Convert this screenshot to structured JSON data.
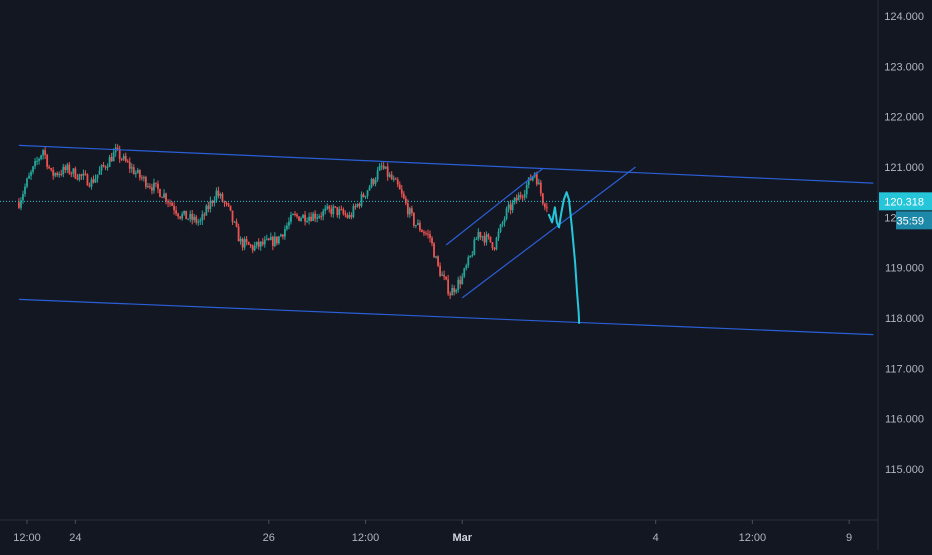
{
  "chart_data": {
    "type": "candlestick",
    "price_axis": {
      "ylim": [
        114.1,
        124.35
      ],
      "ticks": [
        115,
        116,
        117,
        118,
        119,
        120,
        121,
        122,
        123,
        124
      ],
      "tick_labels": [
        "115.000",
        "116.000",
        "117.000",
        "118.000",
        "119.000",
        "120.000",
        "121.000",
        "122.000",
        "123.000",
        "124.000"
      ]
    },
    "time_axis": {
      "ticks": [
        {
          "t": 0,
          "label": "12:00"
        },
        {
          "t": 12,
          "label": "24"
        },
        {
          "t": 60,
          "label": "26"
        },
        {
          "t": 84,
          "label": "12:00"
        },
        {
          "t": 108,
          "label": "Mar"
        },
        {
          "t": 156,
          "label": "4"
        },
        {
          "t": 180,
          "label": "12:00"
        },
        {
          "t": 204,
          "label": "9"
        }
      ]
    },
    "last_price": {
      "value": 120.318,
      "label": "120.318",
      "countdown": "35:59"
    },
    "candles_anchor": [
      [
        -2,
        120.3
      ],
      [
        0,
        120.7
      ],
      [
        4,
        121.35
      ],
      [
        6,
        120.85
      ],
      [
        10,
        120.95
      ],
      [
        16,
        120.7
      ],
      [
        22,
        121.3
      ],
      [
        28,
        120.8
      ],
      [
        34,
        120.45
      ],
      [
        38,
        120.05
      ],
      [
        43,
        119.9
      ],
      [
        47,
        120.5
      ],
      [
        50,
        120.15
      ],
      [
        53,
        119.5
      ],
      [
        56,
        119.4
      ],
      [
        62,
        119.55
      ],
      [
        66,
        120.0
      ],
      [
        72,
        120.05
      ],
      [
        76,
        120.15
      ],
      [
        80,
        120.0
      ],
      [
        84,
        120.5
      ],
      [
        88,
        121.0
      ],
      [
        92,
        120.6
      ],
      [
        96,
        119.9
      ],
      [
        100,
        119.6
      ],
      [
        102,
        119.0
      ],
      [
        105,
        118.5
      ],
      [
        108,
        118.8
      ],
      [
        110,
        119.2
      ],
      [
        112,
        119.7
      ],
      [
        116,
        119.45
      ],
      [
        119,
        120.1
      ],
      [
        123,
        120.5
      ],
      [
        126,
        120.9
      ],
      [
        128,
        120.35
      ],
      [
        129,
        120.25
      ]
    ],
    "trendlines": [
      {
        "name": "channel-top",
        "points": [
          [
            -2,
            121.43
          ],
          [
            210,
            120.68
          ]
        ],
        "color": "#2a5fd6"
      },
      {
        "name": "channel-bottom",
        "points": [
          [
            -2,
            118.37
          ],
          [
            210,
            117.67
          ]
        ],
        "color": "#2a5fd6"
      },
      {
        "name": "rising-channel-top",
        "points": [
          [
            104,
            119.45
          ],
          [
            128,
            120.97
          ]
        ],
        "color": "#2a5fd6"
      },
      {
        "name": "rising-channel-bottom",
        "points": [
          [
            108,
            118.4
          ],
          [
            151,
            121.0
          ]
        ],
        "color": "#2a5fd6"
      }
    ],
    "projection": {
      "name": "forecast-path",
      "color": "#26c6da",
      "points": [
        [
          129.5,
          120.05
        ],
        [
          130.3,
          119.9
        ],
        [
          131.0,
          120.2
        ],
        [
          131.5,
          119.9
        ],
        [
          132.0,
          119.8
        ],
        [
          132.6,
          120.1
        ],
        [
          133.2,
          120.35
        ],
        [
          133.9,
          120.5
        ],
        [
          134.5,
          120.35
        ],
        [
          135.2,
          119.8
        ],
        [
          136.0,
          119.1
        ],
        [
          136.5,
          118.5
        ],
        [
          136.9,
          118.1
        ],
        [
          137.0,
          117.9
        ]
      ]
    },
    "colors": {
      "background": "#131722",
      "up": "#26a69a",
      "down": "#ef5350",
      "axis_text": "#b2b5be",
      "price_line": "#26c6da",
      "price_label_bg": "#26c6da",
      "countdown_bg": "#1e88a8"
    }
  }
}
